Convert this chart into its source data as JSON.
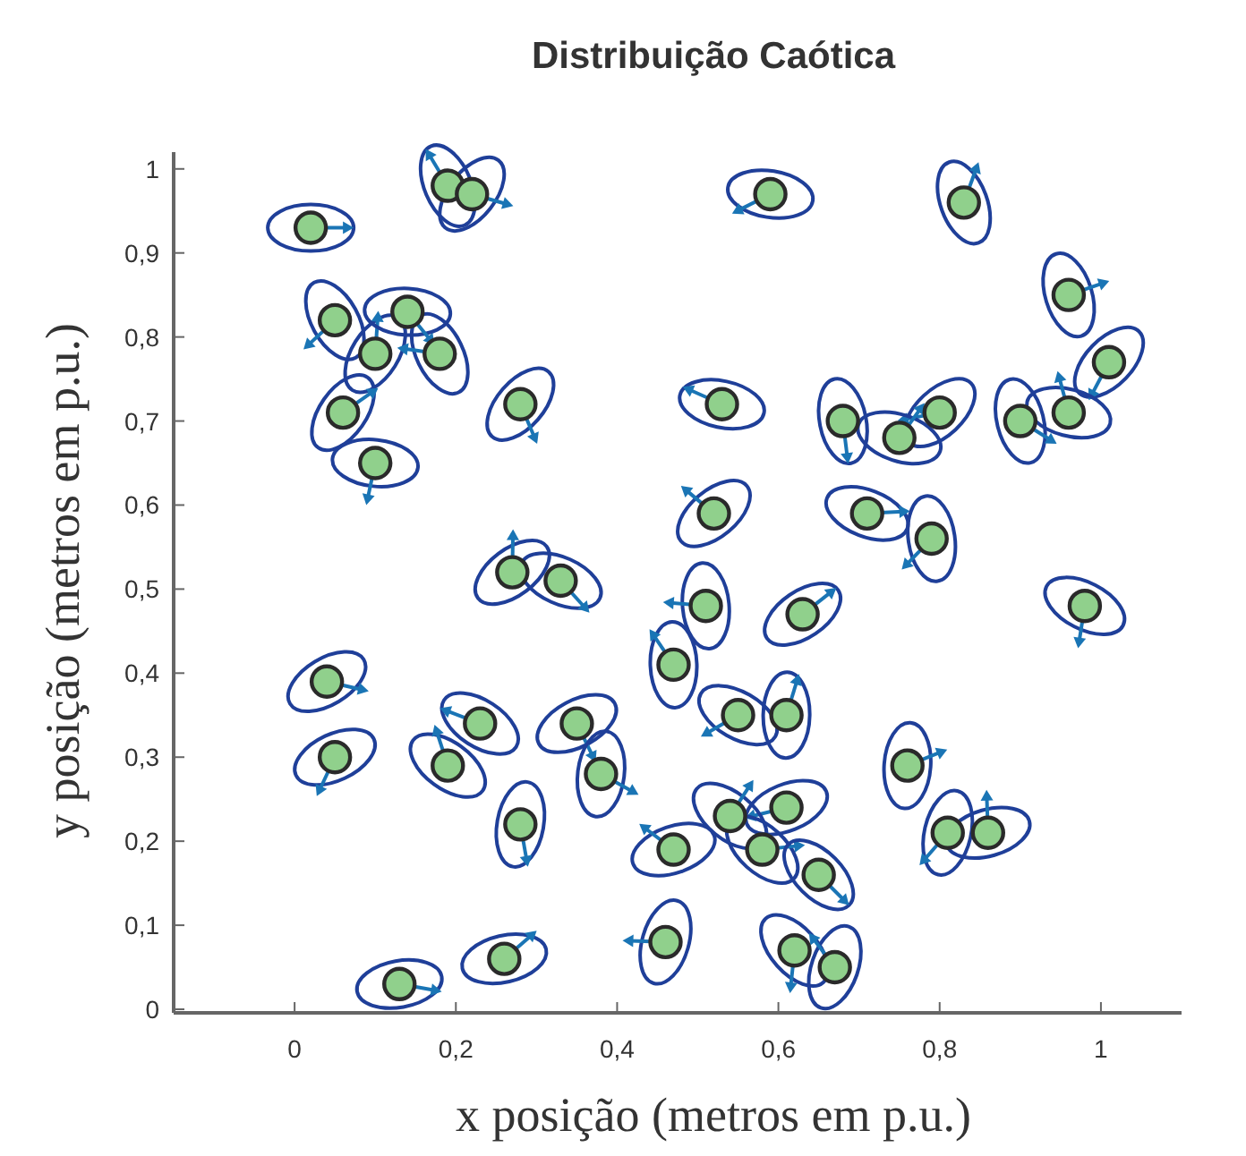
{
  "chart_data": {
    "type": "scatter",
    "title": "Distribuição Caótica",
    "xlabel": "x posição (metros em p.u.)",
    "ylabel": "y posição (metros em p.u.)",
    "xlim": [
      -0.15,
      1.1
    ],
    "ylim": [
      0,
      1.02
    ],
    "xticks": [
      0,
      {
        "value": 0.2,
        "label": "0,2"
      },
      {
        "value": 0.4,
        "label": "0,4"
      },
      {
        "value": 0.6,
        "label": "0,6"
      },
      {
        "value": 0.8,
        "label": "0,8"
      },
      1
    ],
    "yticks": [
      0,
      {
        "value": 0.1,
        "label": "0,1"
      },
      {
        "value": 0.2,
        "label": "0,2"
      },
      {
        "value": 0.3,
        "label": "0,3"
      },
      {
        "value": 0.4,
        "label": "0,4"
      },
      {
        "value": 0.5,
        "label": "0,5"
      },
      {
        "value": 0.6,
        "label": "0,6"
      },
      {
        "value": 0.7,
        "label": "0,7"
      },
      {
        "value": 0.8,
        "label": "0,8"
      },
      {
        "value": 0.9,
        "label": "0,9"
      },
      1
    ],
    "marker": "circle",
    "grid": false,
    "series": [
      {
        "color": "#90d08c",
        "x": [
          0.02,
          0.05,
          0.1,
          0.14,
          0.18,
          0.06,
          0.1,
          0.19,
          0.22,
          0.59,
          0.83,
          0.28,
          0.53,
          0.96,
          1.01,
          0.96,
          0.9,
          0.8,
          0.75,
          0.68,
          0.52,
          0.71,
          0.79,
          0.27,
          0.33,
          0.51,
          0.63,
          0.98,
          0.47,
          0.04,
          0.55,
          0.61,
          0.35,
          0.23,
          0.76,
          0.05,
          0.19,
          0.38,
          0.61,
          0.54,
          0.28,
          0.47,
          0.58,
          0.81,
          0.86,
          0.65,
          0.46,
          0.26,
          0.62,
          0.67,
          0.13
        ],
        "values": [
          0.93,
          0.82,
          0.78,
          0.83,
          0.78,
          0.71,
          0.65,
          0.98,
          0.97,
          0.97,
          0.96,
          0.72,
          0.72,
          0.85,
          0.77,
          0.71,
          0.7,
          0.71,
          0.68,
          0.7,
          0.59,
          0.59,
          0.56,
          0.52,
          0.51,
          0.48,
          0.47,
          0.48,
          0.41,
          0.39,
          0.35,
          0.35,
          0.34,
          0.34,
          0.29,
          0.3,
          0.29,
          0.28,
          0.24,
          0.23,
          0.22,
          0.19,
          0.19,
          0.21,
          0.21,
          0.16,
          0.08,
          0.06,
          0.07,
          0.05,
          0.03
        ]
      }
    ]
  }
}
